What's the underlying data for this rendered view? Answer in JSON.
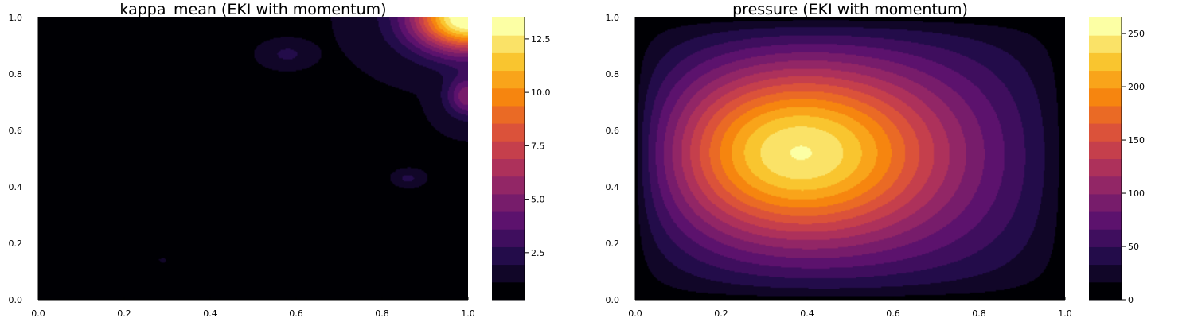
{
  "chart_data": [
    {
      "type": "heatmap",
      "subtype": "filled-contour",
      "title": "kappa_mean (EKI with momentum)",
      "xlabel": "",
      "ylabel": "",
      "xlim": [
        0.0,
        1.0
      ],
      "ylim": [
        0.0,
        1.0
      ],
      "x_ticks": [
        "0.0",
        "0.2",
        "0.4",
        "0.6",
        "0.8",
        "1.0"
      ],
      "y_ticks": [
        "0.0",
        "0.2",
        "0.4",
        "0.6",
        "0.8",
        "1.0"
      ],
      "colorbar": {
        "colormap": "inferno",
        "range": [
          0.3,
          13.5
        ],
        "levels": 16,
        "ticks": [
          "2.5",
          "5.0",
          "7.5",
          "10.0",
          "12.5"
        ],
        "tick_values": [
          2.5,
          5.0,
          7.5,
          10.0,
          12.5
        ]
      },
      "features": [
        {
          "kind": "background",
          "value": 0.5,
          "region": "most of the domain, lower-left"
        },
        {
          "kind": "plateau",
          "value": 1.0,
          "region": "upper band, x 0.25-0.95, y 0.55-1.0 and x 0.7-1.0, y 0.3-0.6"
        },
        {
          "kind": "blob",
          "x": 0.58,
          "y": 0.87,
          "value": 2.0
        },
        {
          "kind": "blob",
          "x": 0.86,
          "y": 0.43,
          "value": 2.0
        },
        {
          "kind": "blob",
          "x": 0.29,
          "y": 0.14,
          "value": 1.5
        },
        {
          "kind": "peak",
          "x": 1.0,
          "y": 1.0,
          "value": 13.5
        },
        {
          "kind": "ridge",
          "x": 1.0,
          "y": 0.72,
          "value": 3.0
        }
      ],
      "grid": false,
      "legend": "none"
    },
    {
      "type": "heatmap",
      "subtype": "filled-contour",
      "title": "pressure (EKI with momentum)",
      "xlabel": "",
      "ylabel": "",
      "xlim": [
        0.0,
        1.0
      ],
      "ylim": [
        0.0,
        1.0
      ],
      "x_ticks": [
        "0.0",
        "0.2",
        "0.4",
        "0.6",
        "0.8",
        "1.0"
      ],
      "y_ticks": [
        "0.0",
        "0.2",
        "0.4",
        "0.6",
        "0.8",
        "1.0"
      ],
      "colorbar": {
        "colormap": "inferno",
        "range": [
          0,
          265
        ],
        "levels": 16,
        "ticks": [
          "0",
          "50",
          "100",
          "150",
          "200",
          "250"
        ],
        "tick_values": [
          0,
          50,
          100,
          150,
          200,
          250
        ]
      },
      "features": [
        {
          "kind": "boundary",
          "value": 0,
          "region": "edges of domain"
        },
        {
          "kind": "peak",
          "x": 0.32,
          "y": 0.53,
          "value": 265
        }
      ],
      "grid": false,
      "legend": "none"
    }
  ]
}
